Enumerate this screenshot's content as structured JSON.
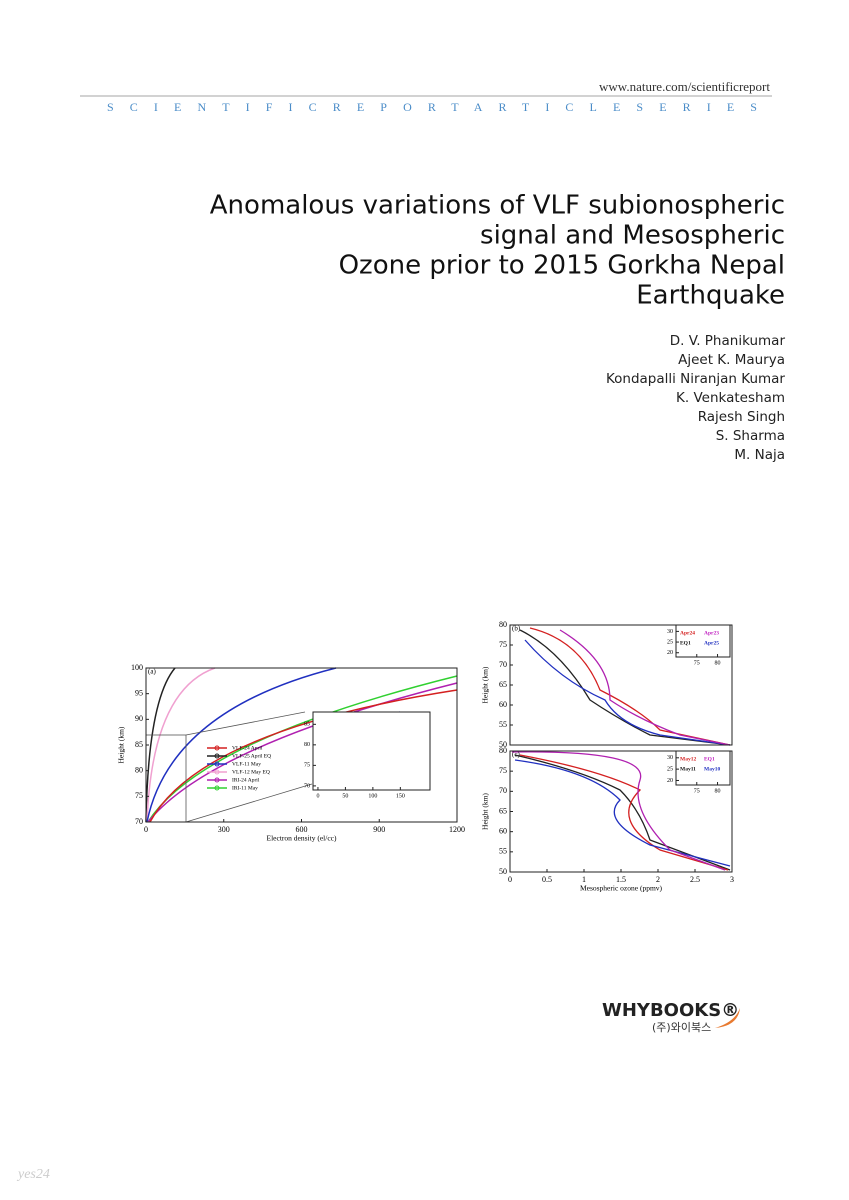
{
  "header": {
    "url": "www.nature.com/scientificreport",
    "series": "SCIENTIFICREPORTARTICLESERIES"
  },
  "title_lines": [
    "Anomalous variations of VLF subionospheric",
    "signal and Mesospheric",
    "Ozone prior to 2015 Gorkha Nepal",
    "Earthquake"
  ],
  "authors": [
    "D. V. Phanikumar",
    "Ajeet K. Maurya",
    "Kondapalli Niranjan Kumar",
    "K. Venkatesham",
    "Rajesh Singh",
    "S. Sharma",
    "M. Naja"
  ],
  "figures": [
    {
      "label": "(a)",
      "xlim": [
        0,
        1200
      ],
      "ylim": [
        70,
        100
      ],
      "xticks": [
        0,
        300,
        600,
        900,
        1200
      ],
      "yticks": [
        70,
        75,
        80,
        85,
        90,
        95,
        100
      ],
      "xlabel": "Electron density (el/cc)",
      "ylabel": "Height (km)",
      "legend": [
        {
          "name": "VLF-24 April",
          "color": "#d42020"
        },
        {
          "name": "VLF-25 April EQ",
          "color": "#222222"
        },
        {
          "name": "VLF-11 May",
          "color": "#2030c0"
        },
        {
          "name": "VLF-12 May EQ",
          "color": "#f0a0d0"
        },
        {
          "name": "IRI-24 April",
          "color": "#b020b0"
        },
        {
          "name": "IRI-11 May",
          "color": "#30d030"
        }
      ],
      "inset": {
        "xlim": [
          -9,
          204
        ],
        "ylim": [
          69,
          88
        ],
        "xticks": [
          0,
          50,
          100,
          150
        ],
        "yticks": [
          70,
          75,
          80,
          85
        ]
      }
    },
    {
      "label": "(b)",
      "xlim": [
        0,
        3
      ],
      "ylim": [
        50,
        80
      ],
      "yticks": [
        50,
        55,
        60,
        65,
        70,
        75,
        80
      ],
      "ylabel": "Height (km)",
      "inset": {
        "xlim": [
          70,
          83
        ],
        "ylim": [
          18,
          33
        ],
        "xticks": [
          75,
          80
        ],
        "yticks": [
          20,
          25,
          30
        ],
        "labels": [
          "Apr24",
          "Apr23",
          "EQ1",
          "Apr25"
        ]
      }
    },
    {
      "label": "(c)",
      "xlim": [
        0,
        3
      ],
      "ylim": [
        50,
        80
      ],
      "yticks": [
        50,
        55,
        60,
        65,
        70,
        75,
        80
      ],
      "xticks": [
        0,
        {
          "value": 0.5,
          "label": "0.5"
        },
        1,
        {
          "value": 1.5,
          "label": "1.5"
        },
        2,
        {
          "value": 2.5,
          "label": "2.5"
        },
        3
      ],
      "xlabel": "Mesospheric ozone (ppmv)",
      "ylabel": "Height (km)",
      "inset": {
        "xlim": [
          70,
          83
        ],
        "ylim": [
          18,
          33
        ],
        "xticks": [
          75,
          80
        ],
        "yticks": [
          20,
          25,
          30
        ],
        "labels": [
          "May12",
          "EQ1",
          "May11",
          "May10"
        ]
      }
    }
  ],
  "publisher": {
    "name": "WHYBOOKS®",
    "korean": "(주)와이북스"
  },
  "watermark": "yes24"
}
